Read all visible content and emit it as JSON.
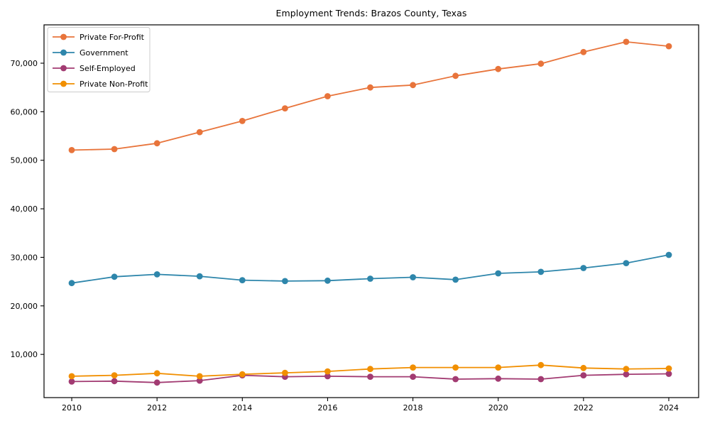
{
  "window": {
    "background": "#ffffff",
    "axis_color": "#000000"
  },
  "chart_data": {
    "type": "line",
    "title": "Employment Trends: Brazos County, Texas",
    "xlabel": "",
    "ylabel": "",
    "grid": false,
    "legend_position": "upper-left",
    "xlim": [
      2009.35,
      2024.7
    ],
    "ylim": [
      1100,
      77900
    ],
    "x_ticks": [
      2010,
      2012,
      2014,
      2016,
      2018,
      2020,
      2022,
      2024
    ],
    "y_ticks": [
      10000,
      20000,
      30000,
      40000,
      50000,
      60000,
      70000
    ],
    "x": [
      2010,
      2011,
      2012,
      2013,
      2014,
      2015,
      2016,
      2017,
      2018,
      2019,
      2020,
      2021,
      2022,
      2023,
      2024
    ],
    "series": [
      {
        "name": "Private For-Profit",
        "color": "#E8743B",
        "values": [
          52100,
          52300,
          53500,
          55800,
          58100,
          60700,
          63200,
          65000,
          65500,
          67400,
          68800,
          69900,
          72300,
          74400,
          73500
        ]
      },
      {
        "name": "Government",
        "color": "#2E86AB",
        "values": [
          24700,
          26000,
          26500,
          26100,
          25300,
          25100,
          25200,
          25600,
          25900,
          25400,
          26700,
          27000,
          27800,
          28800,
          30500
        ]
      },
      {
        "name": "Self-Employed",
        "color": "#A23B72",
        "values": [
          4400,
          4500,
          4200,
          4600,
          5700,
          5400,
          5500,
          5400,
          5400,
          4900,
          5000,
          4900,
          5700,
          5900,
          6000
        ]
      },
      {
        "name": "Private Non-Profit",
        "color": "#F18F01",
        "values": [
          5500,
          5700,
          6100,
          5500,
          5900,
          6200,
          6500,
          7000,
          7300,
          7300,
          7300,
          7800,
          7200,
          7000,
          7100
        ]
      }
    ]
  }
}
